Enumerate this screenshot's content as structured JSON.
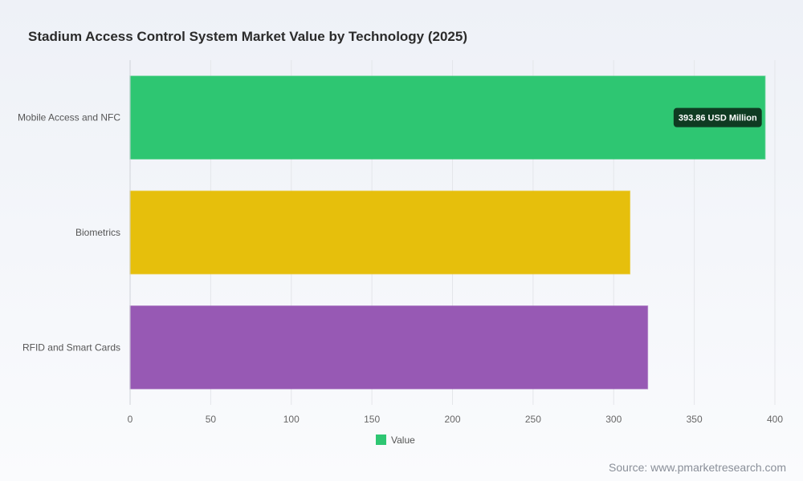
{
  "title": "Stadium Access Control System Market Value by Technology (2025)",
  "source": "Source: www.pmarketresearch.com",
  "chart_data": {
    "type": "bar",
    "orientation": "horizontal",
    "title": "Stadium Access Control System Market Value by Technology (2025)",
    "categories": [
      "Mobile Access and NFC",
      "Biometrics",
      "RFID and Smart Cards"
    ],
    "values": [
      393.86,
      310,
      321
    ],
    "colors": [
      "#2ec672",
      "#e6bf0c",
      "#9759b4"
    ],
    "xlim": [
      0,
      400
    ],
    "xticks": [
      0,
      50,
      100,
      150,
      200,
      250,
      300,
      350,
      400
    ],
    "grid": true,
    "legend": {
      "position": "bottom",
      "entries": [
        {
          "label": "Value",
          "color": "#2ec672"
        }
      ]
    },
    "annotations": [
      {
        "category": "Mobile Access and NFC",
        "text": "393.86 USD Million"
      }
    ]
  }
}
